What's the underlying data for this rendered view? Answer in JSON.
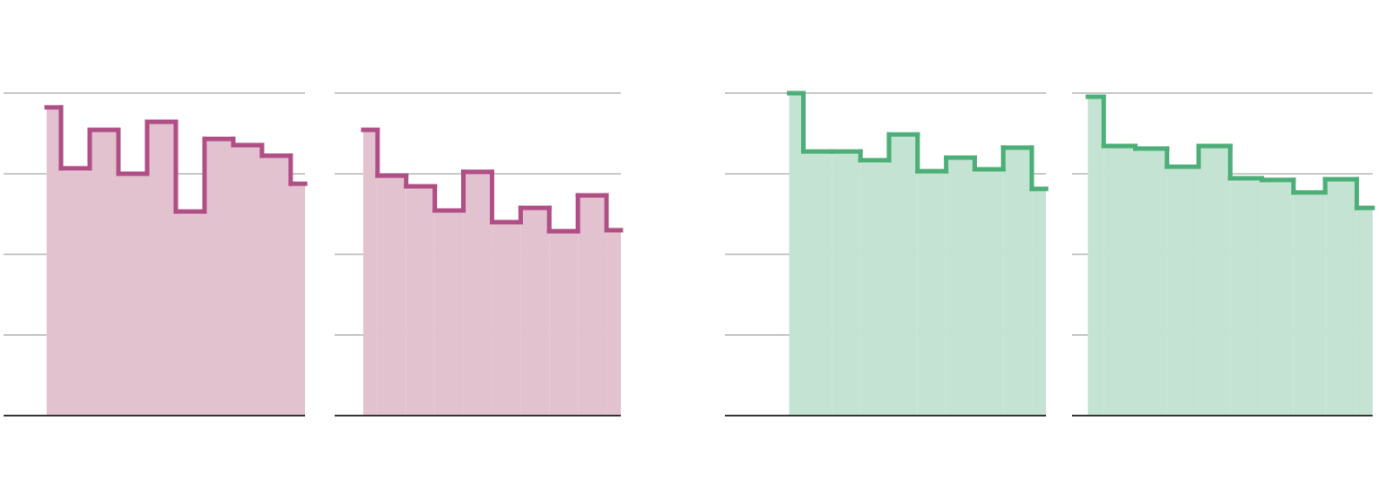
{
  "chart_data": [
    {
      "type": "step",
      "x": [
        0,
        1,
        2,
        3,
        4,
        5,
        6,
        7,
        8,
        9
      ],
      "values": [
        95.6,
        76.7,
        88.6,
        75,
        91.1,
        63.3,
        85.8,
        83.9,
        80.6,
        71.9
      ],
      "color": "#b04f86",
      "fill": "#e3c2d0",
      "xlim": [
        -1.5,
        9
      ],
      "ylim": [
        0,
        100
      ],
      "yticks": [
        0,
        25,
        50,
        75,
        100
      ],
      "grid": true
    },
    {
      "type": "step",
      "x": [
        0,
        1,
        2,
        3,
        4,
        5,
        6,
        7,
        8,
        9
      ],
      "values": [
        88.6,
        74.4,
        71.1,
        63.6,
        75.6,
        60,
        64.4,
        57.2,
        68.3,
        57.5
      ],
      "color": "#b04f86",
      "fill": "#e3c2d0",
      "xlim": [
        -1,
        9
      ],
      "ylim": [
        0,
        100
      ],
      "yticks": [
        0,
        25,
        50,
        75,
        100
      ],
      "grid": true
    },
    {
      "type": "step",
      "x": [
        0,
        1,
        2,
        3,
        4,
        5,
        6,
        7,
        8,
        9
      ],
      "values": [
        100,
        81.9,
        81.9,
        79.2,
        87.2,
        75.8,
        80,
        76.4,
        83.1,
        70.3
      ],
      "color": "#4caf78",
      "fill": "#c5e3d2",
      "xlim": [
        -2.25,
        9
      ],
      "ylim": [
        0,
        100
      ],
      "yticks": [
        0,
        25,
        50,
        75,
        100
      ],
      "grid": true
    },
    {
      "type": "step",
      "x": [
        0,
        1,
        2,
        3,
        4,
        5,
        6,
        7,
        8,
        9
      ],
      "values": [
        98.9,
        83.6,
        82.8,
        77.2,
        83.6,
        73.6,
        73.1,
        69.2,
        73.3,
        64.4
      ],
      "color": "#4caf78",
      "fill": "#c5e3d2",
      "xlim": [
        -0.5,
        9
      ],
      "ylim": [
        0,
        100
      ],
      "yticks": [
        0,
        25,
        50,
        75,
        100
      ],
      "grid": true
    }
  ]
}
